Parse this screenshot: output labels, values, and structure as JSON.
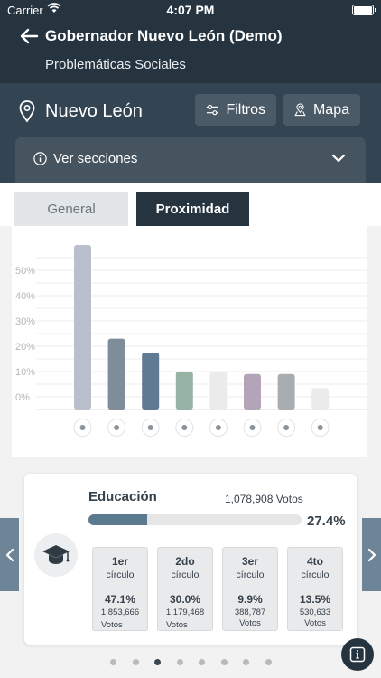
{
  "status": {
    "carrier": "Carrier",
    "time": "4:07 PM"
  },
  "header": {
    "title": "Gobernador Nuevo León (Demo)",
    "subtitle": "Problemáticas Sociales"
  },
  "location": {
    "name": "Nuevo León",
    "filtros_label": "Filtros",
    "mapa_label": "Mapa"
  },
  "sections": {
    "label": "Ver secciones"
  },
  "tabs": [
    {
      "label": "General",
      "active": false
    },
    {
      "label": "Proximidad",
      "active": true
    }
  ],
  "chart_data": {
    "type": "bar",
    "ylim": [
      0,
      60
    ],
    "yticks": [
      "0%",
      "10%",
      "20%",
      "30%",
      "40%",
      "50%"
    ],
    "categories": [
      "people-icon",
      "piggy-bank-icon",
      "graduation-cap-icon",
      "gears-icon",
      "handshake-icon",
      "tool-icon",
      "virus-icon",
      "scales-icon"
    ],
    "values": [
      65,
      28,
      22.5,
      15,
      15,
      14,
      14,
      8.5
    ],
    "colors": [
      "#b9c0cc",
      "#7f8d9b",
      "#5f7a92",
      "#96b3a6",
      "#ebebeb",
      "#b3a5b7",
      "#a9adb2",
      "#ebebeb"
    ]
  },
  "card": {
    "title": "Educación",
    "votes": "1,078,908 Votos",
    "percent_label": "27.4%",
    "percent_value": 0.274,
    "circles": [
      {
        "name": "1er",
        "label": "círculo",
        "percent": "47.1%",
        "votes_num": "1,853,666",
        "votes_unit": "Votos"
      },
      {
        "name": "2do",
        "label": "círculo",
        "percent": "30.0%",
        "votes_num": "1,179,468",
        "votes_unit": "Votos"
      },
      {
        "name": "3er",
        "label": "círculo",
        "percent": "9.9%",
        "votes_num": "388,787 Votos",
        "votes_unit": ""
      },
      {
        "name": "4to",
        "label": "círculo",
        "percent": "13.5%",
        "votes_num": "530,633 Votos",
        "votes_unit": ""
      }
    ]
  },
  "pager": {
    "count": 8,
    "active": 2
  }
}
